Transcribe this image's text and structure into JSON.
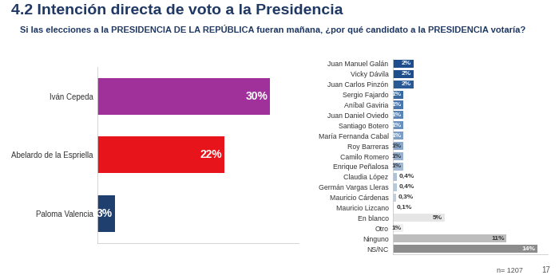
{
  "title": "4.2 Intención directa de voto a la Presidencia",
  "subtitle": "Si las elecciones a la PRESIDENCIA DE LA REPÚBLICA fueran mañana, ¿por qué candidato a la PRESIDENCIA votaría?",
  "footnote": "n= 1207",
  "page": 17,
  "chart_data": [
    {
      "type": "bar",
      "orientation": "horizontal",
      "categories": [
        "Iván Cepeda",
        "Abelardo de la Espriella",
        "Paloma Valencia"
      ],
      "values": [
        30,
        22,
        3
      ],
      "value_labels": [
        "30%",
        "22%",
        "3%"
      ],
      "colors": [
        "#a0309a",
        "#e8141c",
        "#1f3f6e"
      ],
      "xlim": [
        0,
        35
      ],
      "xticks": [],
      "data_labels": true,
      "tick_labels": "y",
      "grid": false
    },
    {
      "type": "bar",
      "orientation": "horizontal",
      "categories": [
        "Juan Manuel Galán",
        "Vicky Dávila",
        "Juan Carlos Pinzón",
        "Sergio Fajardo",
        "Aníbal Gaviria",
        "Juan Daniel Oviedo",
        "Santiago Botero",
        "María Fernanda Cabal",
        "Roy Barreras",
        "Camilo Romero",
        "Enrique Peñalosa",
        "Claudia López",
        "Germán Vargas Lleras",
        "Mauricio Cárdenas",
        "Mauricio Lizcano",
        "En blanco",
        "Otro",
        "Ninguno",
        "NS/NC"
      ],
      "values": [
        2,
        2,
        2,
        1,
        1,
        1,
        1,
        1,
        1,
        1,
        1,
        0.4,
        0.4,
        0.3,
        0.1,
        5,
        1,
        11,
        14
      ],
      "value_labels": [
        "2%",
        "2%",
        "2%",
        "1%",
        "1%",
        "1%",
        "1%",
        "1%",
        "1%",
        "1%",
        "1%",
        "0,4%",
        "0,4%",
        "0,3%",
        "0,1%",
        "5%",
        "1%",
        "11%",
        "14%"
      ],
      "colors": [
        "#1f4e8c",
        "#1f4e8c",
        "#2a5a96",
        "#3b6aa3",
        "#4a77ad",
        "#5a84b6",
        "#6a90bd",
        "#7c9dc4",
        "#8aa7ca",
        "#97b1cf",
        "#a3bad4",
        "#aec2d9",
        "#b8c9dd",
        "#c1d0e1",
        "#c9d6e5",
        "#e6e6e6",
        "#f0f0f0",
        "#bdbdbd",
        "#8c8c8c"
      ],
      "xlim": [
        0,
        15
      ],
      "xticks": [],
      "data_labels": true,
      "tick_labels": "y",
      "grid": false
    }
  ]
}
